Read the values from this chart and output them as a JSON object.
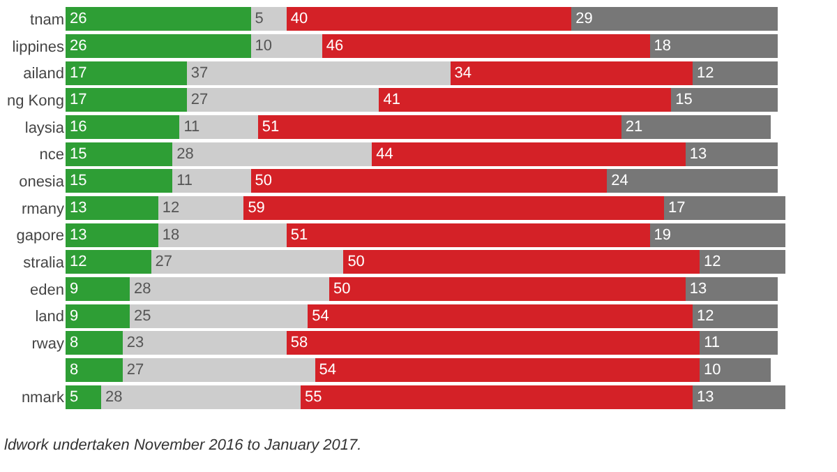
{
  "chart_data": {
    "type": "bar",
    "orientation": "horizontal",
    "stacked": true,
    "data_labels": true,
    "categories": [
      "tnam",
      "lippines",
      "ailand",
      "ng Kong",
      "laysia",
      "nce",
      "onesia",
      "rmany",
      "gapore",
      "stralia",
      "eden",
      "land",
      "rway",
      null,
      "nmark"
    ],
    "series": [
      {
        "color": "#2e9e35",
        "values": [
          26,
          26,
          17,
          17,
          16,
          15,
          15,
          13,
          13,
          12,
          9,
          9,
          8,
          8,
          5
        ]
      },
      {
        "color": "#cdcdcd",
        "values": [
          5,
          10,
          37,
          27,
          11,
          28,
          11,
          12,
          18,
          27,
          28,
          25,
          23,
          27,
          28
        ]
      },
      {
        "color": "#d42127",
        "values": [
          40,
          46,
          34,
          41,
          51,
          44,
          50,
          59,
          51,
          50,
          50,
          54,
          58,
          54,
          55
        ]
      },
      {
        "color": "#777777",
        "values": [
          29,
          18,
          12,
          15,
          21,
          13,
          24,
          17,
          19,
          12,
          13,
          12,
          11,
          10,
          13
        ]
      }
    ],
    "annotations": [
      "ldwork undertaken November 2016 to January 2017."
    ]
  }
}
